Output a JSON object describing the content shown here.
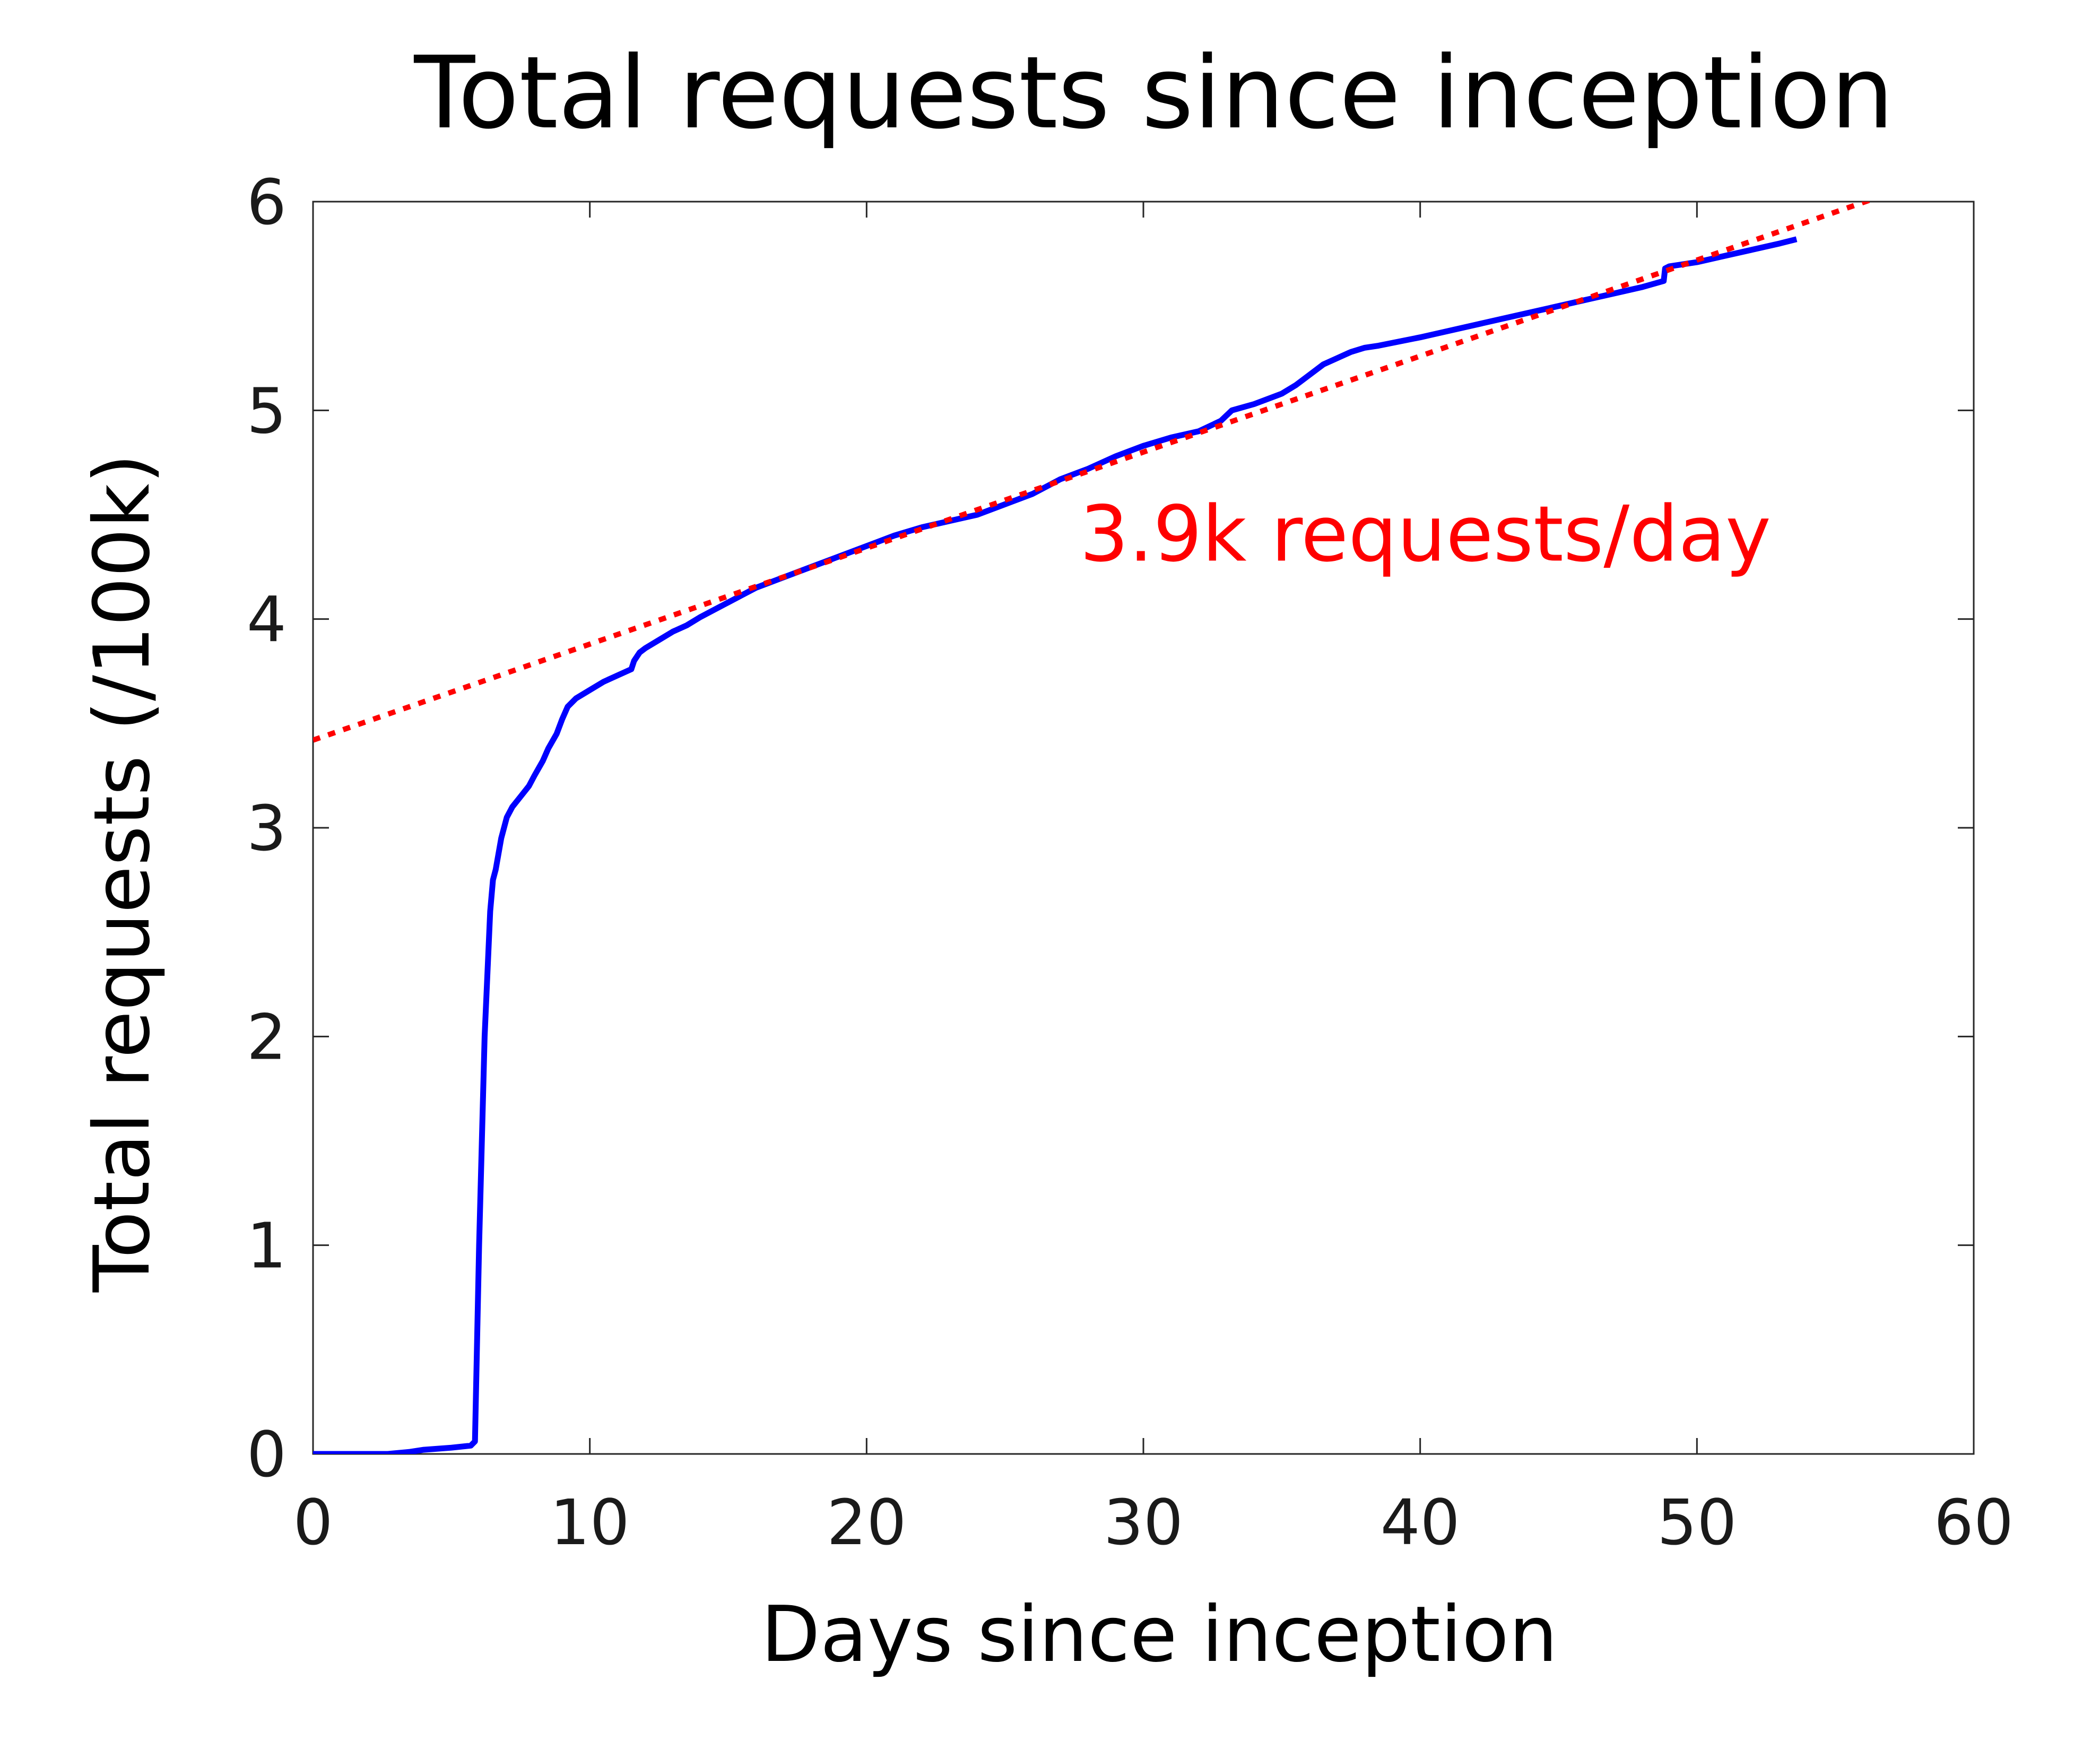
{
  "chart_data": {
    "type": "line",
    "title": "Total requests since inception",
    "xlabel": "Days since inception",
    "ylabel": "Total requests (/100k)",
    "xlim": [
      0,
      60
    ],
    "ylim": [
      0,
      6
    ],
    "xticks": [
      "0",
      "10",
      "20",
      "30",
      "40",
      "50",
      "60"
    ],
    "yticks": [
      "0",
      "1",
      "2",
      "3",
      "4",
      "5",
      "6"
    ],
    "grid": false,
    "series": [
      {
        "color": "#0000ff",
        "x": [
          0,
          2.7,
          3.5,
          4.0,
          5.0,
          5.7,
          5.85,
          6.0,
          6.2,
          6.4,
          6.5,
          6.6,
          6.8,
          7.0,
          7.2,
          7.5,
          7.8,
          8.0,
          8.3,
          8.5,
          8.8,
          9.0,
          9.2,
          9.5,
          10.0,
          10.5,
          11.0,
          11.5,
          11.6,
          11.8,
          12.0,
          12.5,
          13.0,
          13.5,
          14.0,
          15.0,
          16.0,
          17.0,
          18.0,
          19.0,
          20.0,
          21.0,
          22.0,
          23.0,
          24.0,
          25.0,
          26.0,
          27.0,
          28.0,
          29.0,
          30.0,
          31.0,
          32.0,
          32.8,
          33.2,
          34.0,
          35.0,
          35.5,
          36.0,
          36.5,
          37.0,
          37.5,
          38.0,
          38.5,
          40.0,
          42.0,
          44.0,
          46.0,
          47.0,
          48.0,
          48.8,
          48.85,
          49.0,
          50.0,
          51.0,
          52.0,
          53.0,
          53.6
        ],
        "y": [
          0,
          0,
          0.01,
          0.02,
          0.03,
          0.04,
          0.06,
          1.0,
          2.0,
          2.6,
          2.75,
          2.8,
          2.95,
          3.05,
          3.1,
          3.15,
          3.2,
          3.25,
          3.32,
          3.38,
          3.45,
          3.52,
          3.58,
          3.62,
          3.66,
          3.7,
          3.73,
          3.76,
          3.8,
          3.84,
          3.86,
          3.9,
          3.94,
          3.97,
          4.01,
          4.08,
          4.15,
          4.2,
          4.25,
          4.3,
          4.35,
          4.4,
          4.44,
          4.47,
          4.5,
          4.55,
          4.6,
          4.67,
          4.72,
          4.78,
          4.83,
          4.87,
          4.9,
          4.95,
          5.0,
          5.03,
          5.08,
          5.12,
          5.17,
          5.22,
          5.25,
          5.28,
          5.3,
          5.31,
          5.35,
          5.41,
          5.47,
          5.53,
          5.56,
          5.59,
          5.62,
          5.68,
          5.69,
          5.71,
          5.74,
          5.77,
          5.8,
          5.82
        ]
      },
      {
        "color": "#ff0000",
        "dashed": true,
        "x": [
          0,
          60
        ],
        "y": [
          3.42,
          6.18
        ]
      }
    ],
    "annotations": [
      {
        "text": "3.9k requests/day",
        "color": "#ff0000",
        "x": 27.7,
        "y": 4.28
      }
    ]
  }
}
